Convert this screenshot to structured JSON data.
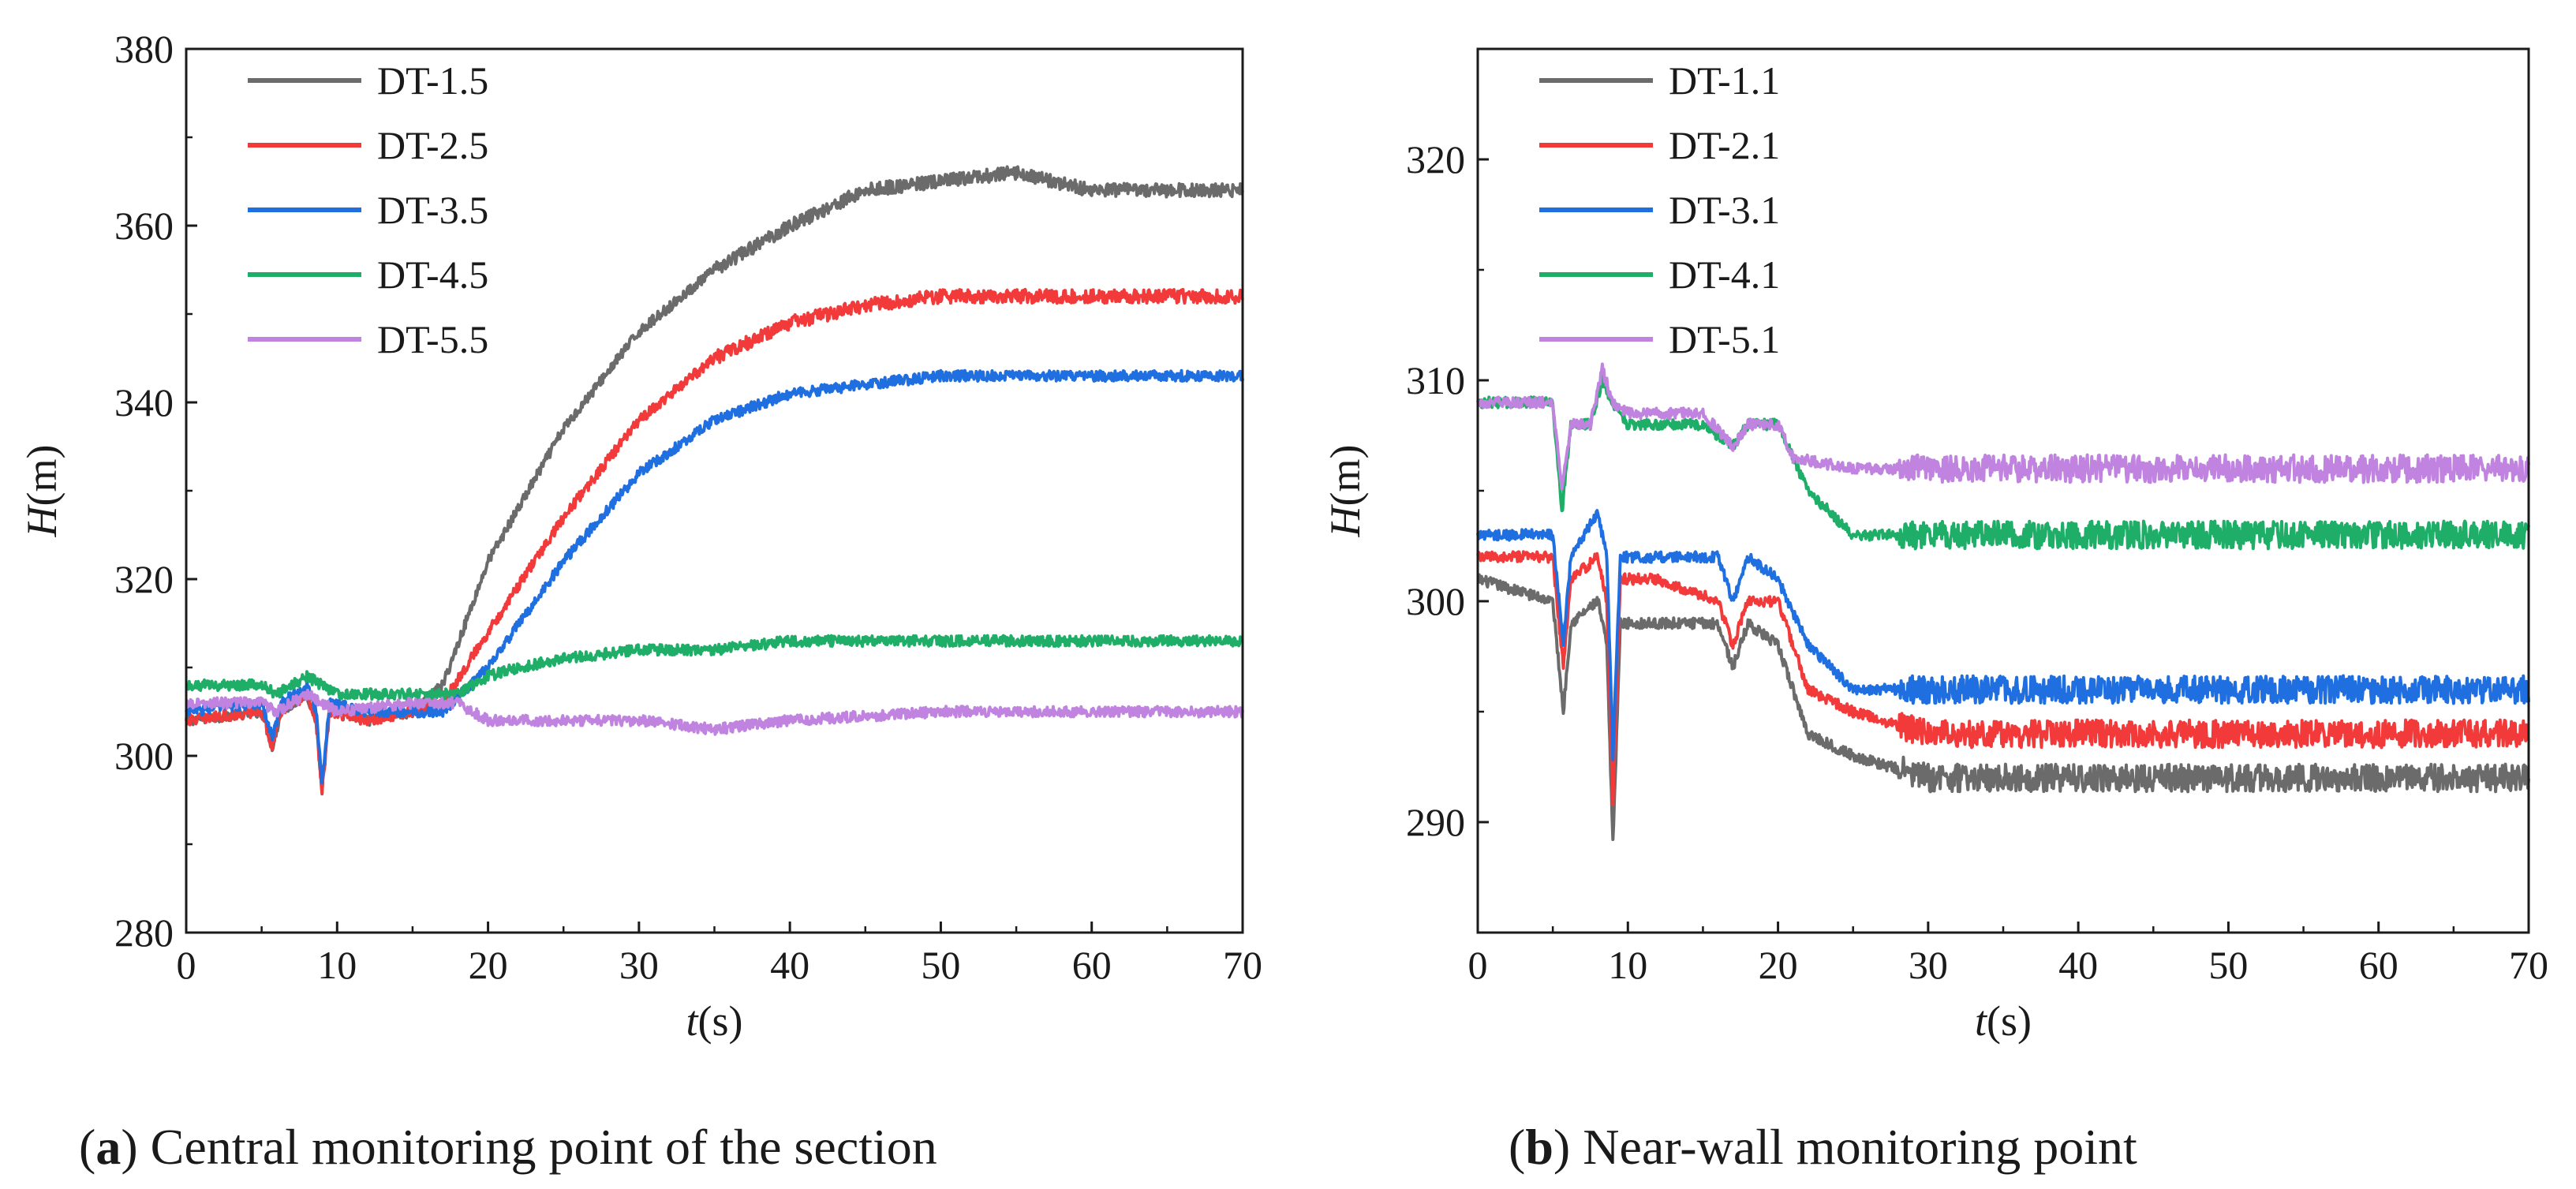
{
  "captions": [
    {
      "open": "(",
      "letter": "a",
      "close": ")",
      "text": " Central monitoring point of the section"
    },
    {
      "open": "(",
      "letter": "b",
      "close": ")",
      "text": " Near-wall monitoring point"
    }
  ],
  "axis_text": {
    "x_var": "t",
    "x_unit": "(s)",
    "y_var": "H",
    "y_unit": "(m)"
  },
  "chart_data": [
    {
      "type": "line",
      "title": "",
      "xlabel": "t(s)",
      "ylabel": "H(m)",
      "xlim": [
        0,
        70
      ],
      "ylim": [
        280,
        380
      ],
      "xticks": [
        "0",
        "10",
        "20",
        "30",
        "40",
        "50",
        "60",
        "70"
      ],
      "yticks": [
        "280",
        "300",
        "320",
        "340",
        "360",
        "380"
      ],
      "grid": false,
      "legend_position": "top-left",
      "series": [
        {
          "name": "DT-1.5",
          "color": "#6b6b6b",
          "x": [
            0,
            5,
            5.7,
            6.3,
            8,
            8.6,
            9,
            9.5,
            12,
            15,
            17,
            20,
            25,
            30,
            35,
            40,
            45,
            50,
            55,
            60,
            65,
            70
          ],
          "y": [
            304,
            305,
            301,
            305,
            307,
            304,
            296,
            305,
            304,
            305,
            308,
            322,
            337,
            348,
            355,
            360,
            364,
            365,
            366,
            364,
            364,
            364
          ]
        },
        {
          "name": "DT-2.5",
          "color": "#f23a3a",
          "x": [
            0,
            5,
            5.7,
            6.3,
            8,
            8.6,
            9,
            9.5,
            12,
            15,
            17,
            20,
            25,
            30,
            35,
            40,
            45,
            50,
            55,
            60,
            65,
            70
          ],
          "y": [
            304,
            305,
            301,
            305,
            307,
            304,
            296,
            305,
            304,
            305,
            306,
            314,
            327,
            338,
            345,
            349,
            351,
            352,
            352,
            352,
            352,
            352
          ]
        },
        {
          "name": "DT-3.5",
          "color": "#1f6fe0",
          "x": [
            0,
            5,
            5.7,
            6.3,
            8,
            8.6,
            9,
            9.5,
            12,
            15,
            17,
            20,
            25,
            30,
            35,
            40,
            45,
            50,
            55,
            60,
            65,
            70
          ],
          "y": [
            305,
            306,
            302,
            306,
            308,
            305,
            297,
            306,
            305,
            305,
            305,
            310,
            322,
            332,
            338,
            341,
            342,
            343,
            343,
            343,
            343,
            343
          ]
        },
        {
          "name": "DT-4.5",
          "color": "#1fae67",
          "x": [
            0,
            5,
            6,
            8,
            9,
            10,
            15,
            18,
            20,
            22,
            25,
            30,
            35,
            40,
            50,
            60,
            70
          ],
          "y": [
            308,
            308,
            307,
            309,
            308,
            307,
            307,
            307,
            309,
            310,
            311,
            312,
            312,
            313,
            313,
            313,
            313
          ]
        },
        {
          "name": "DT-5.5",
          "color": "#c084e0",
          "x": [
            0,
            5,
            6,
            8,
            9,
            10,
            15,
            18,
            20,
            25,
            30,
            35,
            40,
            50,
            60,
            70
          ],
          "y": [
            306,
            306,
            305,
            307,
            306,
            305,
            306,
            306,
            304,
            304,
            304,
            303,
            304,
            305,
            305,
            305
          ]
        }
      ]
    },
    {
      "type": "line",
      "title": "",
      "xlabel": "t(s)",
      "ylabel": "H(m)",
      "xlim": [
        0,
        70
      ],
      "ylim": [
        285,
        325
      ],
      "xticks": [
        "0",
        "10",
        "20",
        "30",
        "40",
        "50",
        "60",
        "70"
      ],
      "yticks": [
        "290",
        "300",
        "310",
        "320"
      ],
      "grid": false,
      "legend_position": "top-left",
      "series": [
        {
          "name": "DT-1.1",
          "color": "#6b6b6b",
          "x": [
            0,
            5,
            5.7,
            6.2,
            8,
            8.6,
            9,
            9.5,
            12,
            16,
            17,
            18,
            20,
            22,
            25,
            30,
            40,
            50,
            60,
            70
          ],
          "y": [
            301,
            300,
            295,
            299,
            300,
            298,
            289,
            299,
            299,
            299,
            297,
            299,
            298,
            294,
            293,
            292,
            292,
            292,
            292,
            292
          ]
        },
        {
          "name": "DT-2.1",
          "color": "#f23a3a",
          "x": [
            0,
            5,
            5.7,
            6.2,
            8,
            8.6,
            9,
            9.5,
            12,
            16,
            17,
            18,
            20,
            22,
            25,
            30,
            40,
            50,
            60,
            70
          ],
          "y": [
            302,
            302,
            297,
            301,
            302,
            300,
            291,
            301,
            301,
            300,
            298,
            300,
            300,
            296,
            295,
            294,
            294,
            294,
            294,
            294
          ]
        },
        {
          "name": "DT-3.1",
          "color": "#1f6fe0",
          "x": [
            0,
            5,
            5.7,
            6.2,
            8,
            8.6,
            9,
            9.5,
            12,
            16,
            17,
            18,
            20,
            22,
            25,
            30,
            40,
            50,
            60,
            70
          ],
          "y": [
            303,
            303,
            298,
            302,
            304,
            302,
            293,
            302,
            302,
            302,
            300,
            302,
            301,
            298,
            296,
            296,
            296,
            296,
            296,
            296
          ]
        },
        {
          "name": "DT-4.1",
          "color": "#1fae67",
          "x": [
            0,
            5,
            5.6,
            6.2,
            7.5,
            8.3,
            9,
            10,
            15,
            17,
            18,
            20,
            22,
            25,
            28,
            30,
            40,
            50,
            60,
            70
          ],
          "y": [
            309,
            309,
            304,
            308,
            308,
            310,
            309,
            308,
            308,
            307,
            308,
            308,
            305,
            303,
            303,
            303,
            303,
            303,
            303,
            303
          ]
        },
        {
          "name": "DT-5.1",
          "color": "#c084e0",
          "x": [
            0,
            5,
            5.6,
            6.2,
            7.5,
            8.3,
            9,
            10,
            15,
            17,
            18,
            20,
            21,
            25,
            30,
            40,
            50,
            60,
            70
          ],
          "y": [
            309,
            309,
            305,
            308,
            308,
            310.5,
            309,
            308.5,
            308.5,
            307,
            308,
            308,
            306.5,
            306,
            306,
            306,
            306,
            306,
            306
          ]
        }
      ]
    }
  ]
}
